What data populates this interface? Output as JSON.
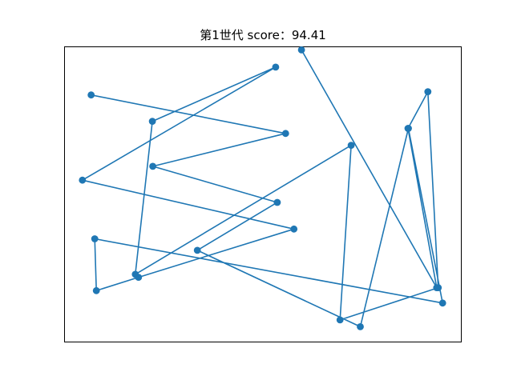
{
  "chart_data": {
    "type": "line",
    "title": "第1世代 score：94.41",
    "xlabel": "",
    "ylabel": "",
    "ticks": "hidden",
    "grid": false,
    "marker": "circle",
    "color": "#1f77b4",
    "xlim": [
      0.0,
      1.0
    ],
    "ylim": [
      0.0,
      1.0
    ],
    "series": [
      {
        "points": [
          [
            0.068,
            0.836
          ],
          [
            0.557,
            0.706
          ],
          [
            0.223,
            0.595
          ],
          [
            0.536,
            0.473
          ],
          [
            0.335,
            0.311
          ],
          [
            0.745,
            0.053
          ],
          [
            0.866,
            0.723
          ],
          [
            0.952,
            0.133
          ],
          [
            0.077,
            0.35
          ],
          [
            0.081,
            0.175
          ],
          [
            0.187,
            0.22
          ],
          [
            0.578,
            0.383
          ],
          [
            0.046,
            0.548
          ],
          [
            0.532,
            0.93
          ],
          [
            0.222,
            0.747
          ],
          [
            0.179,
            0.23
          ],
          [
            0.722,
            0.666
          ],
          [
            0.694,
            0.076
          ],
          [
            0.941,
            0.185
          ],
          [
            0.915,
            0.847
          ],
          [
            0.865,
            0.723
          ],
          [
            0.937,
            0.185
          ],
          [
            0.597,
            0.988
          ]
        ]
      }
    ]
  }
}
